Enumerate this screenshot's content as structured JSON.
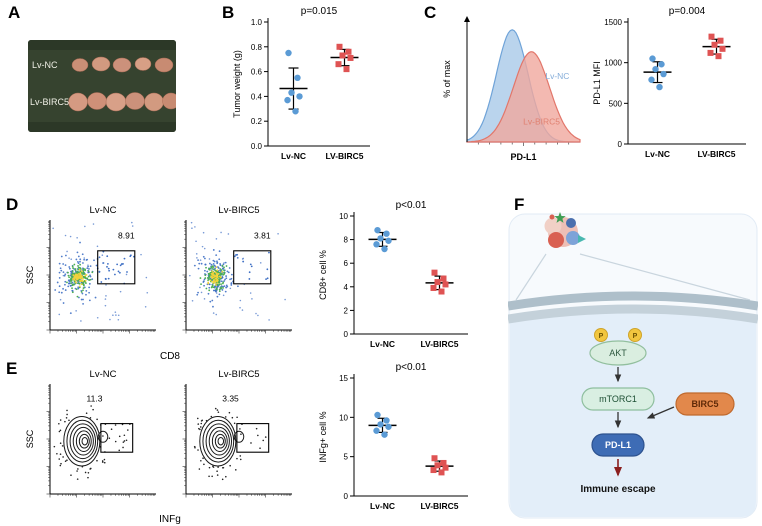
{
  "panel_labels": {
    "a": "A",
    "b": "B",
    "c": "C",
    "d": "D",
    "e": "E",
    "f": "F"
  },
  "panel_a": {
    "group1": "Lv-NC",
    "group2": "Lv-BIRC5"
  },
  "panel_d": {
    "xlabel": "CD8"
  },
  "panel_e": {
    "xlabel": "INFg"
  },
  "panel_f": {
    "akt": "AKT",
    "phospho": "P",
    "mtorc1": "mTORC1",
    "birc5": "BIRC5",
    "pdl1": "PD-L1",
    "outcome": "Immune escape"
  },
  "chart_data": [
    {
      "id": "tumor-weight",
      "type": "scatter",
      "p_label": "p=0.015",
      "ylabel": "Tumor weight (g)",
      "categories": [
        "Lv-NC",
        "LV-BIRC5"
      ],
      "series": [
        {
          "name": "Lv-NC",
          "values": [
            0.75,
            0.55,
            0.43,
            0.4,
            0.37,
            0.28
          ]
        },
        {
          "name": "LV-BIRC5",
          "values": [
            0.8,
            0.76,
            0.73,
            0.71,
            0.66,
            0.62
          ]
        }
      ],
      "ylim": [
        0,
        1
      ],
      "yticks": [
        0,
        0.2,
        0.4,
        0.6,
        0.8,
        1
      ],
      "ytick_labels": [
        "0.0",
        "0.2",
        "0.4",
        "0.6",
        "0.8",
        "1.0"
      ],
      "colors": [
        "#5B9BD5",
        "#DF5353"
      ],
      "markers": [
        "circle",
        "square"
      ]
    },
    {
      "id": "pdl1-histogram",
      "type": "area",
      "ylabel": "% of max",
      "xlabel": "PD-L1",
      "curves": [
        {
          "name": "Lv-NC",
          "center": 0.4,
          "width": 0.14,
          "height": 0.92,
          "fill": "#A9C9E8",
          "stroke": "#6FA3D8",
          "label_color": "#85ADD9"
        },
        {
          "name": "Lv-BIRC5",
          "center": 0.57,
          "width": 0.16,
          "height": 0.74,
          "fill": "#F0A89E",
          "stroke": "#E2766A",
          "label_color": "#E08070"
        }
      ]
    },
    {
      "id": "pdl1-mfi",
      "type": "scatter",
      "p_label": "p=0.004",
      "ylabel": "PD-L1 MFI",
      "categories": [
        "Lv-NC",
        "LV-BIRC5"
      ],
      "series": [
        {
          "name": "Lv-NC",
          "values": [
            1050,
            980,
            920,
            860,
            790,
            700
          ]
        },
        {
          "name": "LV-BIRC5",
          "values": [
            1320,
            1270,
            1220,
            1170,
            1120,
            1080
          ]
        }
      ],
      "ylim": [
        0,
        1500
      ],
      "yticks": [
        0,
        500,
        1000,
        1500
      ],
      "ytick_labels": [
        "0",
        "500",
        "1000",
        "1500"
      ],
      "colors": [
        "#5B9BD5",
        "#DF5353"
      ],
      "markers": [
        "circle",
        "square"
      ]
    },
    {
      "id": "flow-cd8-nc",
      "type": "flow-scatter",
      "title": "Lv-NC",
      "gate_percent": "8.91",
      "ylabel": "SSC",
      "gate_density": 14,
      "seed": 7
    },
    {
      "id": "flow-cd8-birc5",
      "type": "flow-scatter",
      "title": "Lv-BIRC5",
      "gate_percent": "3.81",
      "gate_density": 6,
      "seed": 13
    },
    {
      "id": "cd8-percent",
      "type": "scatter",
      "p_label": "p<0.01",
      "ylabel": "CD8+ cell %",
      "categories": [
        "Lv-NC",
        "LV-BIRC5"
      ],
      "series": [
        {
          "name": "Lv-NC",
          "values": [
            8.8,
            8.5,
            8.1,
            7.9,
            7.6,
            7.2
          ]
        },
        {
          "name": "LV-BIRC5",
          "values": [
            5.2,
            4.7,
            4.4,
            4.2,
            3.9,
            3.6
          ]
        }
      ],
      "ylim": [
        0,
        10
      ],
      "yticks": [
        0,
        2,
        4,
        6,
        8,
        10
      ],
      "ytick_labels": [
        "0",
        "2",
        "4",
        "6",
        "8",
        "10"
      ],
      "colors": [
        "#5B9BD5",
        "#DF5353"
      ],
      "markers": [
        "circle",
        "square"
      ]
    },
    {
      "id": "flow-infg-nc",
      "type": "flow-contour",
      "title": "Lv-NC",
      "gate_percent": "11.3",
      "ylabel": "SSC",
      "gate_density": 10,
      "seed": 21
    },
    {
      "id": "flow-infg-birc5",
      "type": "flow-contour",
      "title": "Lv-BIRC5",
      "gate_percent": "3.35",
      "gate_density": 4,
      "seed": 29
    },
    {
      "id": "infg-percent",
      "type": "scatter",
      "p_label": "p<0.01",
      "ylabel": "INFg+ cell %",
      "categories": [
        "Lv-NC",
        "LV-BIRC5"
      ],
      "series": [
        {
          "name": "Lv-NC",
          "values": [
            10.3,
            9.6,
            9.1,
            8.8,
            8.3,
            7.8
          ]
        },
        {
          "name": "LV-BIRC5",
          "values": [
            4.8,
            4.2,
            3.9,
            3.6,
            3.3,
            3.0
          ]
        }
      ],
      "ylim": [
        0,
        15
      ],
      "yticks": [
        0,
        5,
        10,
        15
      ],
      "ytick_labels": [
        "0",
        "5",
        "10",
        "15"
      ],
      "colors": [
        "#5B9BD5",
        "#DF5353"
      ],
      "markers": [
        "circle",
        "square"
      ]
    }
  ]
}
